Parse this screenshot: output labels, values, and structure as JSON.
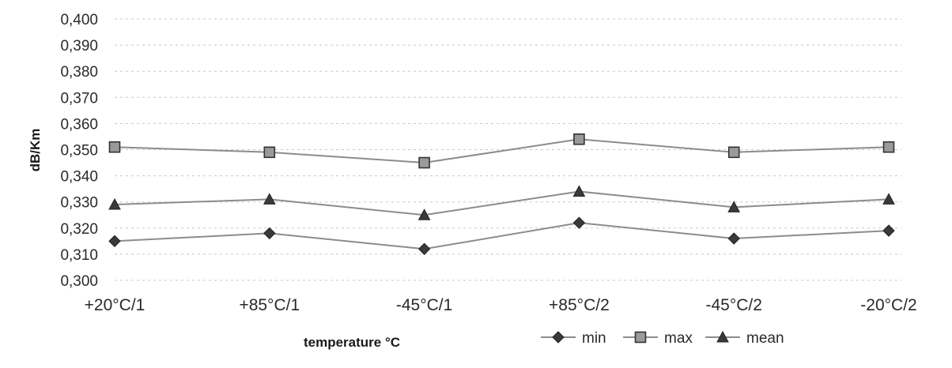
{
  "chart_data": {
    "type": "line",
    "categories": [
      "+20°C/1",
      "+85°C/1",
      "-45°C/1",
      "+85°C/2",
      "-45°C/2",
      "-20°C/2"
    ],
    "series": [
      {
        "name": "min",
        "marker": "diamond",
        "values": [
          0.315,
          0.318,
          0.312,
          0.322,
          0.316,
          0.319
        ]
      },
      {
        "name": "max",
        "marker": "square",
        "values": [
          0.351,
          0.349,
          0.345,
          0.354,
          0.349,
          0.351
        ]
      },
      {
        "name": "mean",
        "marker": "triangle",
        "values": [
          0.329,
          0.331,
          0.325,
          0.334,
          0.328,
          0.331
        ]
      }
    ],
    "y_tick_labels": [
      "0,300",
      "0,310",
      "0,320",
      "0,330",
      "0,340",
      "0,350",
      "0,360",
      "0,370",
      "0,380",
      "0,390",
      "0,400"
    ],
    "ylim": [
      0.3,
      0.4
    ],
    "xlabel": "temperature °C",
    "ylabel": "dB/Km",
    "grid": true,
    "legend_position": "bottom-right",
    "colors": {
      "line": "#8c8c8c",
      "marker_fill": "#3a3a3a",
      "square_fill": "#9a9a9a",
      "grid": "#c8c8c8"
    }
  }
}
